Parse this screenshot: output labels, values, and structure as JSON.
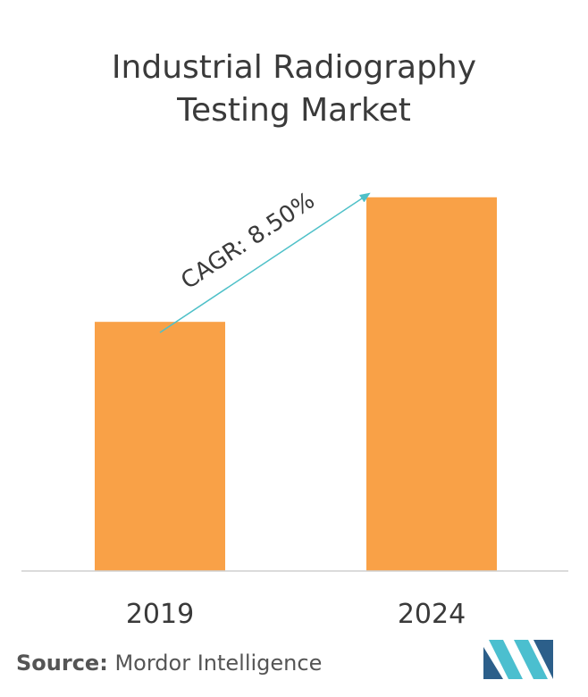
{
  "colors": {
    "bar": "#f9a147",
    "axis": "#cfcfcf",
    "arrow": "#4ec0c8",
    "text": "#3a3a3a",
    "logo_dark": "#2c5f8a",
    "logo_light": "#4bbfcf"
  },
  "title_lines": [
    "Industrial Radiography",
    "Testing Market"
  ],
  "source": {
    "label": "Source:",
    "text": "Mordor Intelligence"
  },
  "logo": {
    "icon": "mordor-intelligence-logo"
  },
  "chart_data": {
    "type": "bar",
    "title": "Industrial Radiography Testing Market",
    "categories": [
      "2019",
      "2024"
    ],
    "values": [
      1.0,
      1.5
    ],
    "value_note": "relative bar heights (2024 bar ~1.5x the 2019 bar)",
    "ylim": [
      0,
      1.7
    ],
    "xlabel": "",
    "ylabel": "",
    "grid": false,
    "annotation": {
      "text": "CAGR: 8.50%",
      "from": "2019",
      "to": "2024"
    }
  }
}
